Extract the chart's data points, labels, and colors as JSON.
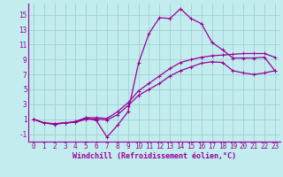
{
  "xlabel": "Windchill (Refroidissement éolien,°C)",
  "xlim": [
    -0.5,
    23.5
  ],
  "ylim": [
    -2.0,
    16.5
  ],
  "xticks": [
    0,
    1,
    2,
    3,
    4,
    5,
    6,
    7,
    8,
    9,
    10,
    11,
    12,
    13,
    14,
    15,
    16,
    17,
    18,
    19,
    20,
    21,
    22,
    23
  ],
  "yticks": [
    -1,
    1,
    3,
    5,
    7,
    9,
    11,
    13,
    15
  ],
  "bg_color": "#c2ecee",
  "grid_color": "#a0d0d4",
  "line_color": "#990099",
  "line1_y": [
    1.0,
    0.5,
    0.3,
    0.5,
    0.6,
    1.2,
    0.8,
    -1.4,
    0.2,
    2.0,
    8.5,
    12.5,
    14.6,
    14.5,
    15.8,
    14.5,
    13.8,
    11.3,
    10.3,
    9.2,
    9.2,
    9.2,
    9.3,
    7.5
  ],
  "line2_y": [
    1.0,
    0.5,
    0.4,
    0.5,
    0.7,
    1.2,
    1.2,
    1.1,
    2.0,
    3.2,
    4.8,
    5.8,
    6.8,
    7.8,
    8.6,
    9.0,
    9.3,
    9.5,
    9.6,
    9.7,
    9.8,
    9.8,
    9.8,
    9.3
  ],
  "line3_y": [
    1.0,
    0.5,
    0.4,
    0.5,
    0.6,
    1.0,
    1.0,
    0.9,
    1.6,
    2.8,
    4.2,
    5.0,
    5.8,
    6.8,
    7.5,
    8.0,
    8.5,
    8.7,
    8.6,
    7.5,
    7.2,
    7.0,
    7.2,
    7.5
  ],
  "marker": "+",
  "markersize": 3.5,
  "linewidth": 0.9,
  "tick_labelsize": 5.5,
  "xlabel_fontsize": 6.0
}
